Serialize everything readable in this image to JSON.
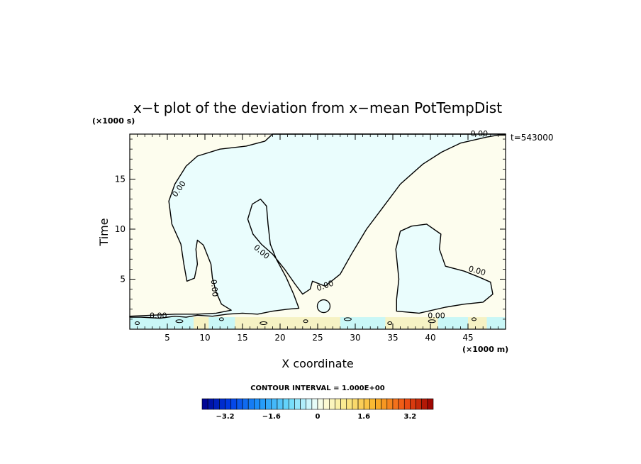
{
  "chart_data": {
    "type": "contour",
    "title": "x−t plot of the deviation from x−mean PotTempDist",
    "xlabel": "X coordinate",
    "ylabel": "Time",
    "x_unit": "(×1000 m)",
    "y_unit": "(×1000 s)",
    "xlim": [
      0,
      50
    ],
    "ylim": [
      0,
      19.5
    ],
    "x_ticks": [
      "5",
      "10",
      "15",
      "20",
      "25",
      "30",
      "35",
      "40",
      "45"
    ],
    "y_ticks": [
      "5",
      "10",
      "15"
    ],
    "x_tick_values": [
      5,
      10,
      15,
      20,
      25,
      30,
      35,
      40,
      45
    ],
    "y_tick_values": [
      5,
      10,
      15
    ],
    "time_label": "t=543000",
    "contour_interval_label": "CONTOUR INTERVAL = 1.000E+00",
    "contour_label": "0.00",
    "colorbar": {
      "range": [
        -4,
        4
      ],
      "n_levels": 40,
      "tick_labels": [
        "−3.2",
        "−1.6",
        "0",
        "1.6",
        "3.2"
      ],
      "tick_values": [
        -3.2,
        -1.6,
        0,
        1.6,
        3.2
      ]
    },
    "colors": {
      "positive_fill": "#fdfdee",
      "negative_fill": "#eafdfd",
      "band_negative": "#c9f7f7",
      "band_positive": "#f6f2c4"
    },
    "negative_region_outline": [
      [
        1.5,
        1.2
      ],
      [
        4,
        1.1
      ],
      [
        6,
        1.3
      ],
      [
        7.5,
        1.2
      ],
      [
        9,
        1.4
      ],
      [
        11,
        1.3
      ],
      [
        13,
        1.5
      ],
      [
        15,
        1.6
      ],
      [
        17,
        1.5
      ],
      [
        19,
        1.8
      ],
      [
        21,
        2.0
      ],
      [
        22.5,
        2.1
      ],
      [
        21.8,
        3.5
      ],
      [
        20.8,
        5.2
      ],
      [
        19.5,
        7.0
      ],
      [
        18.7,
        8.5
      ],
      [
        18.4,
        10.5
      ],
      [
        18.2,
        12.3
      ],
      [
        17.4,
        13.0
      ],
      [
        16.3,
        12.5
      ],
      [
        15.7,
        11.0
      ],
      [
        16.4,
        9.5
      ],
      [
        17.5,
        8.5
      ],
      [
        19,
        7.5
      ],
      [
        20.6,
        6.0
      ],
      [
        22,
        4.5
      ],
      [
        23,
        3.5
      ],
      [
        24,
        4.0
      ],
      [
        24.3,
        4.8
      ],
      [
        26,
        4.3
      ],
      [
        28,
        5.5
      ],
      [
        29.5,
        7.5
      ],
      [
        31.5,
        10.0
      ],
      [
        33.5,
        12.0
      ],
      [
        36,
        14.5
      ],
      [
        39,
        16.5
      ],
      [
        41.5,
        17.7
      ],
      [
        44,
        18.6
      ],
      [
        47.5,
        19.2
      ],
      [
        49,
        19.4
      ],
      [
        50,
        19.4
      ],
      [
        50,
        19.5
      ],
      [
        19,
        19.5
      ],
      [
        18,
        18.8
      ],
      [
        15.5,
        18.3
      ],
      [
        12,
        18.0
      ],
      [
        9,
        17.3
      ],
      [
        7.5,
        16.3
      ],
      [
        6,
        14.5
      ],
      [
        5.2,
        12.8
      ],
      [
        5.6,
        10.5
      ],
      [
        6.8,
        8.5
      ],
      [
        7.2,
        6.5
      ],
      [
        7.6,
        4.8
      ],
      [
        8.6,
        5.1
      ],
      [
        9,
        6.5
      ],
      [
        8.8,
        8.0
      ],
      [
        9.0,
        8.9
      ],
      [
        9.8,
        8.4
      ],
      [
        10.8,
        6.5
      ],
      [
        11.0,
        5.1
      ],
      [
        11.5,
        3.7
      ],
      [
        12.2,
        2.5
      ],
      [
        13.5,
        1.9
      ],
      [
        11.5,
        1.6
      ],
      [
        9,
        1.5
      ],
      [
        6,
        1.5
      ],
      [
        3,
        1.4
      ],
      [
        0,
        1.3
      ],
      [
        0,
        1.2
      ]
    ],
    "negative_blob_right": [
      [
        35.5,
        1.8
      ],
      [
        38.5,
        1.6
      ],
      [
        42,
        2.2
      ],
      [
        44.5,
        2.5
      ],
      [
        47,
        2.7
      ],
      [
        48.3,
        3.5
      ],
      [
        48.0,
        4.7
      ],
      [
        46.5,
        5.2
      ],
      [
        44.5,
        5.8
      ],
      [
        42,
        6.3
      ],
      [
        41.2,
        8.0
      ],
      [
        41.4,
        9.5
      ],
      [
        39.5,
        10.5
      ],
      [
        37.5,
        10.3
      ],
      [
        36,
        9.8
      ],
      [
        35.4,
        8.0
      ],
      [
        35.8,
        5.0
      ],
      [
        35.5,
        3.0
      ]
    ],
    "contour_label_positions": [
      {
        "x": 6.6,
        "y": 14.0,
        "angle": -55
      },
      {
        "x": 17.5,
        "y": 7.7,
        "angle": 40
      },
      {
        "x": 11.2,
        "y": 4.1,
        "angle": 85
      },
      {
        "x": 26.0,
        "y": 4.3,
        "angle": -20
      },
      {
        "x": 46.5,
        "y": 19.5,
        "angle": 0
      },
      {
        "x": 46.2,
        "y": 5.8,
        "angle": 15
      },
      {
        "x": 3.8,
        "y": 1.3,
        "angle": 0
      },
      {
        "x": 40.8,
        "y": 1.3,
        "angle": 0
      }
    ]
  }
}
